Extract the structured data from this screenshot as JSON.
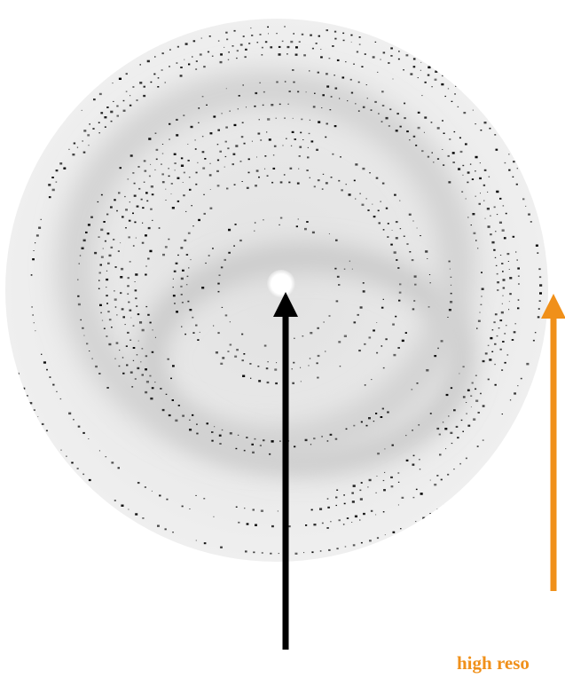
{
  "annotations": {
    "orange_label": "high reso"
  }
}
